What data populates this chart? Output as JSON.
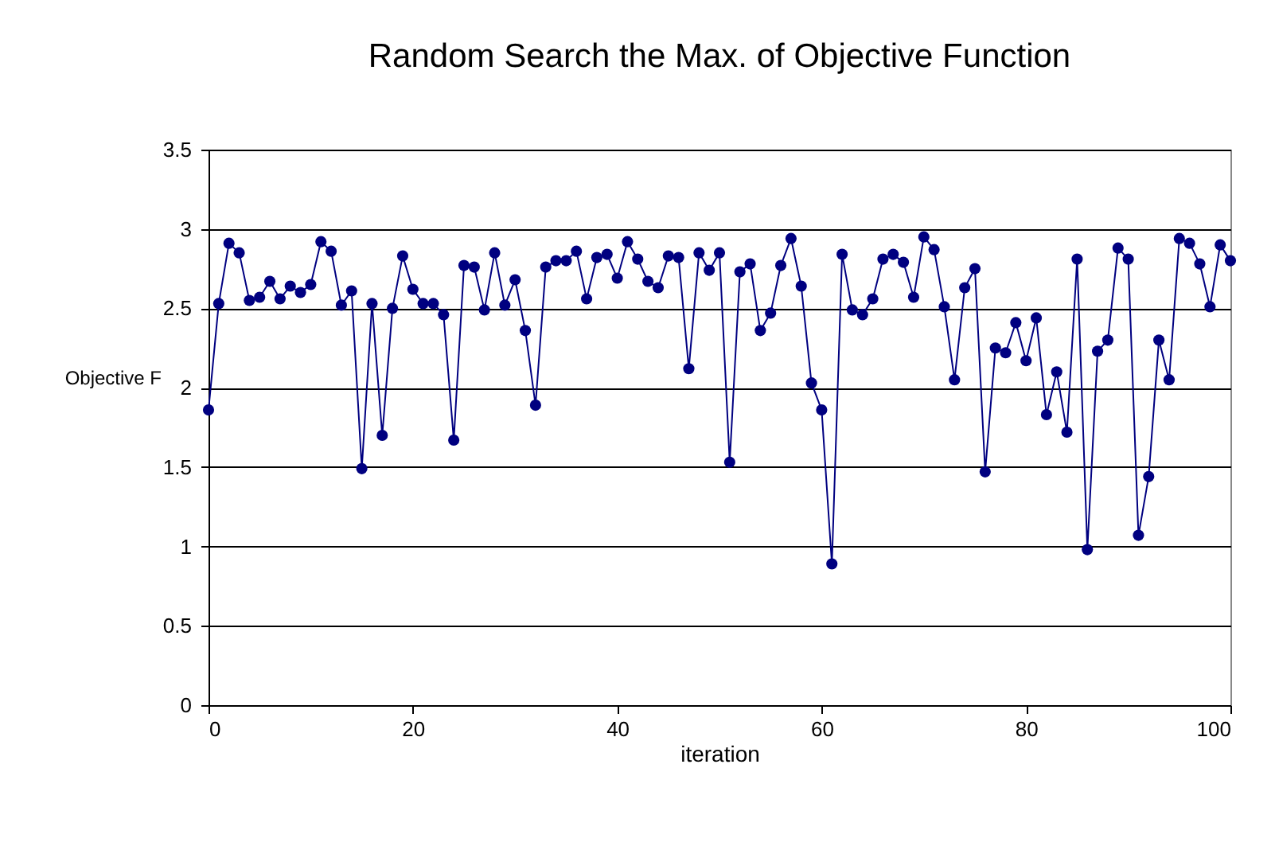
{
  "chart_data": {
    "type": "line",
    "title": "Random Search the Max. of Objective Function",
    "xlabel": "iteration",
    "ylabel": "Objective F",
    "x": [
      0,
      1,
      2,
      3,
      4,
      5,
      6,
      7,
      8,
      9,
      10,
      11,
      12,
      13,
      14,
      15,
      16,
      17,
      18,
      19,
      20,
      21,
      22,
      23,
      24,
      25,
      26,
      27,
      28,
      29,
      30,
      31,
      32,
      33,
      34,
      35,
      36,
      37,
      38,
      39,
      40,
      41,
      42,
      43,
      44,
      45,
      46,
      47,
      48,
      49,
      50,
      51,
      52,
      53,
      54,
      55,
      56,
      57,
      58,
      59,
      60,
      61,
      62,
      63,
      64,
      65,
      66,
      67,
      68,
      69,
      70,
      71,
      72,
      73,
      74,
      75,
      76,
      77,
      78,
      79,
      80,
      81,
      82,
      83,
      84,
      85,
      86,
      87,
      88,
      89,
      90,
      91,
      92,
      93,
      94,
      95,
      96,
      97,
      98,
      99,
      100
    ],
    "series": [
      {
        "color": "#000080",
        "values": [
          1.86,
          2.53,
          2.91,
          2.85,
          2.55,
          2.57,
          2.67,
          2.56,
          2.64,
          2.6,
          2.65,
          2.92,
          2.86,
          2.52,
          2.61,
          1.49,
          2.53,
          1.7,
          2.5,
          2.83,
          2.62,
          2.53,
          2.53,
          2.46,
          1.67,
          2.77,
          2.76,
          2.49,
          2.85,
          2.52,
          2.68,
          2.36,
          1.89,
          2.76,
          2.8,
          2.8,
          2.86,
          2.56,
          2.82,
          2.84,
          2.69,
          2.92,
          2.81,
          2.67,
          2.63,
          2.83,
          2.82,
          2.12,
          2.85,
          2.74,
          2.85,
          1.53,
          2.73,
          2.78,
          2.36,
          2.47,
          2.77,
          2.94,
          2.64,
          2.03,
          1.86,
          0.89,
          2.84,
          2.49,
          2.46,
          2.56,
          2.81,
          2.84,
          2.79,
          2.57,
          2.95,
          2.87,
          2.51,
          2.05,
          2.63,
          2.75,
          1.47,
          2.25,
          2.22,
          2.41,
          2.17,
          2.44,
          1.83,
          2.1,
          1.72,
          2.81,
          0.98,
          2.23,
          2.3,
          2.88,
          2.81,
          1.07,
          1.44,
          2.3,
          2.05,
          2.94,
          2.91,
          2.78,
          2.51,
          2.9,
          2.8
        ]
      }
    ],
    "xlim": [
      0,
      100
    ],
    "xticks": [
      0,
      20,
      40,
      60,
      80,
      100
    ],
    "ylim": [
      0,
      3.5
    ],
    "yticks": [
      0,
      0.5,
      1,
      1.5,
      2,
      2.5,
      3,
      3.5
    ],
    "grid": "y",
    "marker": "circle",
    "line_style": "solid"
  }
}
